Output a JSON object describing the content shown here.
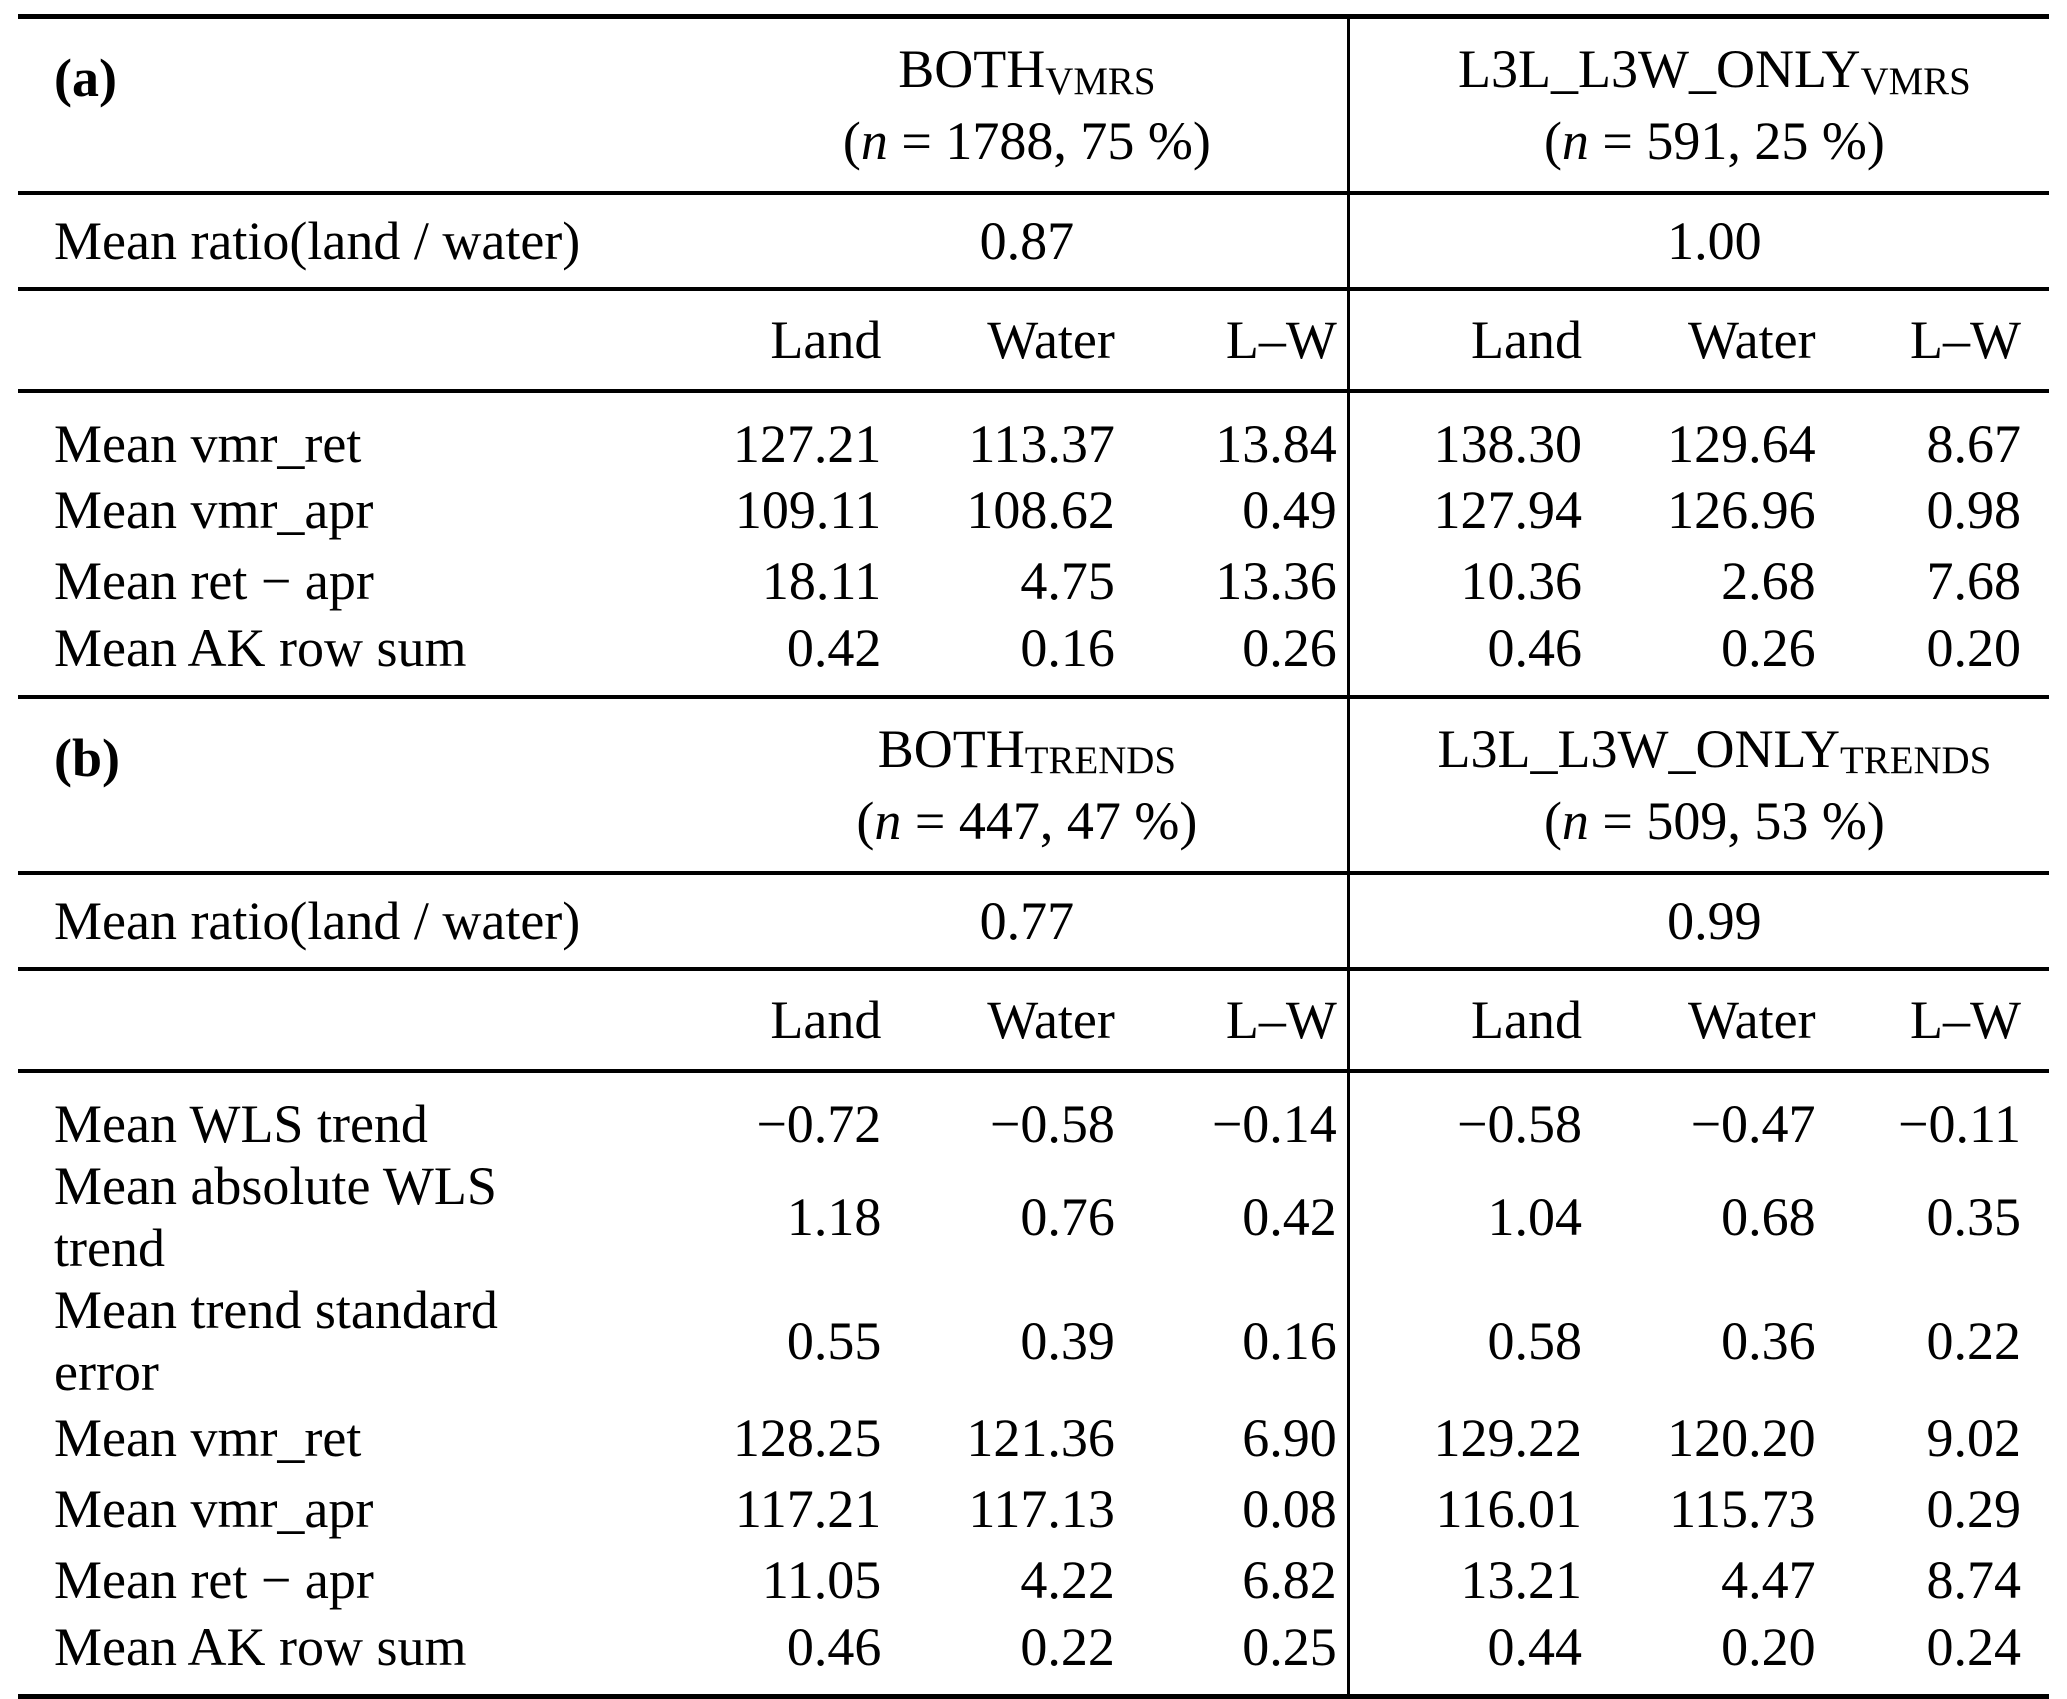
{
  "table": {
    "sections": [
      {
        "label": "(a)",
        "ratio_label": "Mean ratio(land / water)",
        "col_headers": [
          "Land",
          "Water",
          "L–W"
        ],
        "groups": [
          {
            "name": "BOTH",
            "subscript": "VMRS",
            "n_open": "(",
            "n_var": "n",
            "n_rest": " = 1788, 75 %)",
            "ratio": "0.87"
          },
          {
            "name": "L3L_L3W_ONLY",
            "subscript": "VMRS",
            "n_open": "(",
            "n_var": "n",
            "n_rest": " = 591, 25 %)",
            "ratio": "1.00"
          }
        ],
        "rows": [
          {
            "label": "Mean vmr_ret",
            "values": [
              "127.21",
              "113.37",
              "13.84",
              "138.30",
              "129.64",
              "8.67"
            ]
          },
          {
            "label": "Mean vmr_apr",
            "values": [
              "109.11",
              "108.62",
              "0.49",
              "127.94",
              "126.96",
              "0.98"
            ]
          },
          {
            "label": "Mean ret − apr",
            "values": [
              "18.11",
              "4.75",
              "13.36",
              "10.36",
              "2.68",
              "7.68"
            ]
          },
          {
            "label": "Mean AK row sum",
            "values": [
              "0.42",
              "0.16",
              "0.26",
              "0.46",
              "0.26",
              "0.20"
            ]
          }
        ]
      },
      {
        "label": "(b)",
        "ratio_label": "Mean ratio(land / water)",
        "col_headers": [
          "Land",
          "Water",
          "L–W"
        ],
        "groups": [
          {
            "name": "BOTH",
            "subscript": "TRENDS",
            "n_open": "(",
            "n_var": "n",
            "n_rest": " = 447, 47 %)",
            "ratio": "0.77"
          },
          {
            "name": "L3L_L3W_ONLY",
            "subscript": "TRENDS",
            "n_open": "(",
            "n_var": "n",
            "n_rest": " = 509, 53 %)",
            "ratio": "0.99"
          }
        ],
        "rows": [
          {
            "label": "Mean WLS trend",
            "values": [
              "−0.72",
              "−0.58",
              "−0.14",
              "−0.58",
              "−0.47",
              "−0.11"
            ]
          },
          {
            "label": "Mean absolute WLS trend",
            "values": [
              "1.18",
              "0.76",
              "0.42",
              "1.04",
              "0.68",
              "0.35"
            ]
          },
          {
            "label": "Mean trend standard error",
            "values": [
              "0.55",
              "0.39",
              "0.16",
              "0.58",
              "0.36",
              "0.22"
            ]
          },
          {
            "label": "Mean vmr_ret",
            "values": [
              "128.25",
              "121.36",
              "6.90",
              "129.22",
              "120.20",
              "9.02"
            ]
          },
          {
            "label": "Mean vmr_apr",
            "values": [
              "117.21",
              "117.13",
              "0.08",
              "116.01",
              "115.73",
              "0.29"
            ]
          },
          {
            "label": "Mean ret − apr",
            "values": [
              "11.05",
              "4.22",
              "6.82",
              "13.21",
              "4.47",
              "8.74"
            ]
          },
          {
            "label": "Mean AK row sum",
            "values": [
              "0.46",
              "0.22",
              "0.25",
              "0.44",
              "0.20",
              "0.24"
            ]
          }
        ]
      }
    ]
  }
}
